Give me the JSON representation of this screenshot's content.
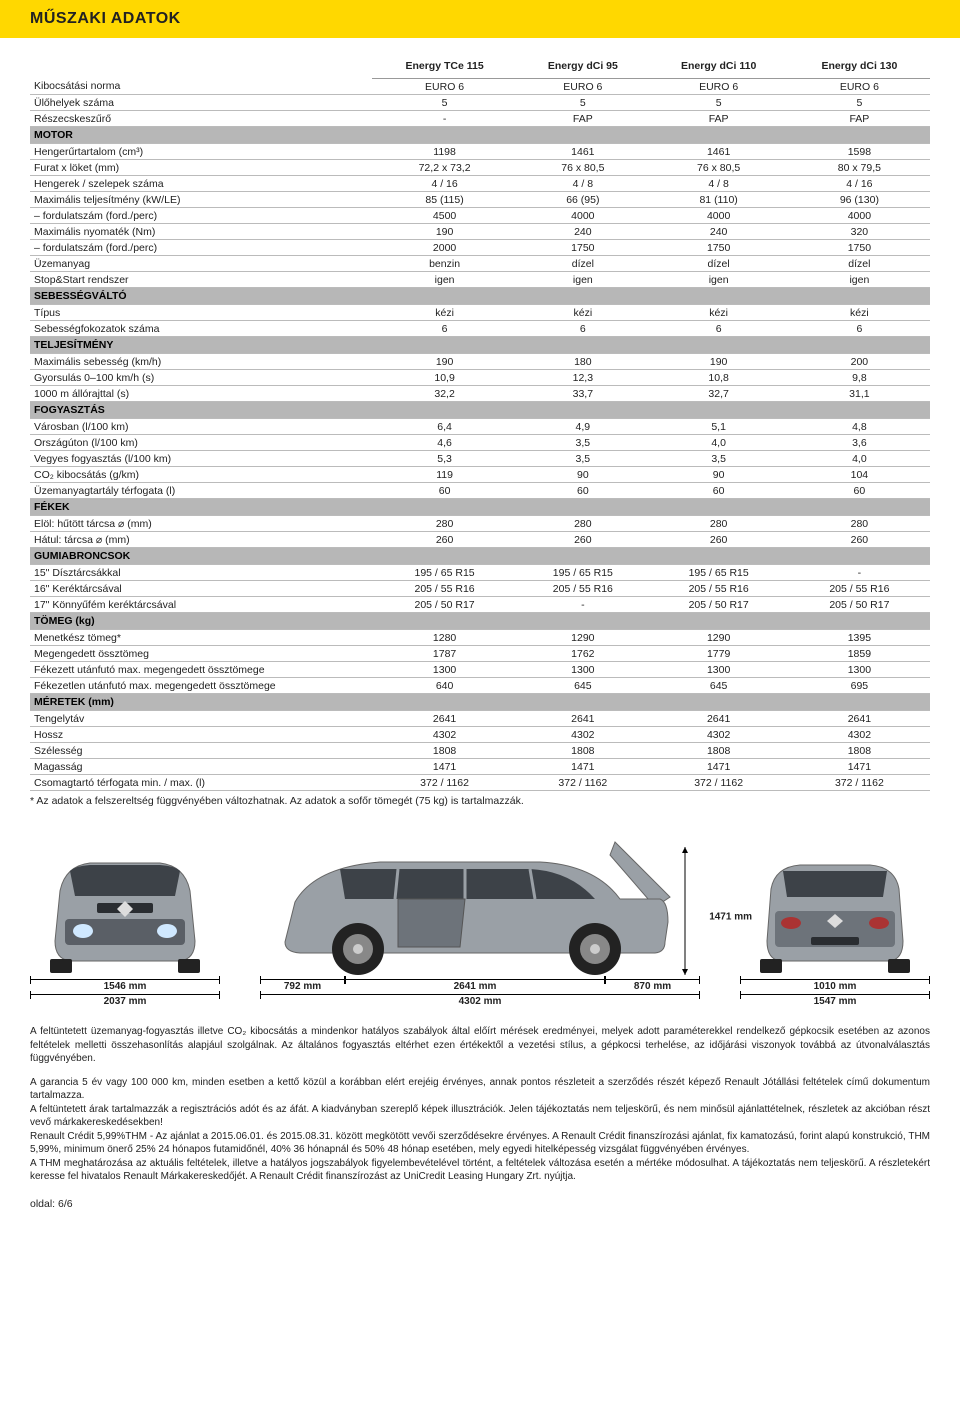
{
  "title": "MŰSZAKI ADATOK",
  "columns": [
    "Energy TCe 115",
    "Energy dCi 95",
    "Energy dCi 110",
    "Energy dCi 130"
  ],
  "sections": [
    {
      "type": "row",
      "label": "Kibocsátási norma",
      "v": [
        "EURO 6",
        "EURO 6",
        "EURO 6",
        "EURO 6"
      ]
    },
    {
      "type": "row",
      "label": "Ülőhelyek száma",
      "v": [
        "5",
        "5",
        "5",
        "5"
      ]
    },
    {
      "type": "row",
      "label": "Részecskeszűrő",
      "v": [
        "-",
        "FAP",
        "FAP",
        "FAP"
      ]
    },
    {
      "type": "section",
      "label": "MOTOR"
    },
    {
      "type": "row",
      "label": "Hengerűrtartalom (cm³)",
      "v": [
        "1198",
        "1461",
        "1461",
        "1598"
      ]
    },
    {
      "type": "row",
      "label": "Furat x löket (mm)",
      "v": [
        "72,2 x 73,2",
        "76 x 80,5",
        "76 x 80,5",
        "80 x 79,5"
      ]
    },
    {
      "type": "row",
      "label": "Hengerek / szelepek száma",
      "v": [
        "4 / 16",
        "4 / 8",
        "4 / 8",
        "4 / 16"
      ]
    },
    {
      "type": "row",
      "label": "Maximális teljesítmény (kW/LE)",
      "v": [
        "85 (115)",
        "66 (95)",
        "81 (110)",
        "96 (130)"
      ]
    },
    {
      "type": "row",
      "label": "– fordulatszám (ford./perc)",
      "v": [
        "4500",
        "4000",
        "4000",
        "4000"
      ]
    },
    {
      "type": "row",
      "label": "Maximális nyomaték (Nm)",
      "v": [
        "190",
        "240",
        "240",
        "320"
      ]
    },
    {
      "type": "row",
      "label": "– fordulatszám (ford./perc)",
      "v": [
        "2000",
        "1750",
        "1750",
        "1750"
      ]
    },
    {
      "type": "row",
      "label": "Üzemanyag",
      "v": [
        "benzin",
        "dízel",
        "dízel",
        "dízel"
      ]
    },
    {
      "type": "row",
      "label": "Stop&Start rendszer",
      "v": [
        "igen",
        "igen",
        "igen",
        "igen"
      ]
    },
    {
      "type": "section",
      "label": "SEBESSÉGVÁLTÓ"
    },
    {
      "type": "row",
      "label": "Típus",
      "v": [
        "kézi",
        "kézi",
        "kézi",
        "kézi"
      ]
    },
    {
      "type": "row",
      "label": "Sebességfokozatok száma",
      "v": [
        "6",
        "6",
        "6",
        "6"
      ]
    },
    {
      "type": "section",
      "label": "TELJESÍTMÉNY"
    },
    {
      "type": "row",
      "label": "Maximális sebesség (km/h)",
      "v": [
        "190",
        "180",
        "190",
        "200"
      ]
    },
    {
      "type": "row",
      "label": "Gyorsulás 0–100 km/h (s)",
      "v": [
        "10,9",
        "12,3",
        "10,8",
        "9,8"
      ]
    },
    {
      "type": "row",
      "label": "1000 m állórajttal (s)",
      "v": [
        "32,2",
        "33,7",
        "32,7",
        "31,1"
      ]
    },
    {
      "type": "section",
      "label": "FOGYASZTÁS"
    },
    {
      "type": "row",
      "label": "Városban (l/100 km)",
      "v": [
        "6,4",
        "4,9",
        "5,1",
        "4,8"
      ]
    },
    {
      "type": "row",
      "label": "Országúton (l/100 km)",
      "v": [
        "4,6",
        "3,5",
        "4,0",
        "3,6"
      ]
    },
    {
      "type": "row",
      "label": "Vegyes fogyasztás (l/100 km)",
      "v": [
        "5,3",
        "3,5",
        "3,5",
        "4,0"
      ]
    },
    {
      "type": "row",
      "label": "CO₂ kibocsátás (g/km)",
      "v": [
        "119",
        "90",
        "90",
        "104"
      ]
    },
    {
      "type": "row",
      "label": "Üzemanyagtartály térfogata (l)",
      "v": [
        "60",
        "60",
        "60",
        "60"
      ]
    },
    {
      "type": "section",
      "label": "FÉKEK"
    },
    {
      "type": "row",
      "label": "Elöl: hűtött tárcsa ⌀ (mm)",
      "v": [
        "280",
        "280",
        "280",
        "280"
      ]
    },
    {
      "type": "row",
      "label": "Hátul: tárcsa ⌀ (mm)",
      "v": [
        "260",
        "260",
        "260",
        "260"
      ]
    },
    {
      "type": "section",
      "label": "GUMIABRONCSOK"
    },
    {
      "type": "row",
      "label": "15\" Dísztárcsákkal",
      "v": [
        "195 / 65 R15",
        "195 / 65 R15",
        "195 / 65 R15",
        "-"
      ]
    },
    {
      "type": "row",
      "label": "16\" Keréktárcsával",
      "v": [
        "205 / 55 R16",
        "205 / 55 R16",
        "205 / 55 R16",
        "205 / 55 R16"
      ]
    },
    {
      "type": "row",
      "label": "17\" Könnyűfém keréktárcsával",
      "v": [
        "205 / 50 R17",
        "-",
        "205 / 50 R17",
        "205 / 50 R17"
      ]
    },
    {
      "type": "section",
      "label": "TÖMEG (kg)"
    },
    {
      "type": "row",
      "label": "Menetkész tömeg*",
      "v": [
        "1280",
        "1290",
        "1290",
        "1395"
      ]
    },
    {
      "type": "row",
      "label": "Megengedett össztömeg",
      "v": [
        "1787",
        "1762",
        "1779",
        "1859"
      ]
    },
    {
      "type": "row",
      "label": "Fékezett utánfutó max. megengedett össztömege",
      "v": [
        "1300",
        "1300",
        "1300",
        "1300"
      ]
    },
    {
      "type": "row",
      "label": "Fékezetlen utánfutó max. megengedett össztömege",
      "v": [
        "640",
        "645",
        "645",
        "695"
      ]
    },
    {
      "type": "section",
      "label": "MÉRETEK (mm)"
    },
    {
      "type": "row",
      "label": "Tengelytáv",
      "v": [
        "2641",
        "2641",
        "2641",
        "2641"
      ]
    },
    {
      "type": "row",
      "label": "Hossz",
      "v": [
        "4302",
        "4302",
        "4302",
        "4302"
      ]
    },
    {
      "type": "row",
      "label": "Szélesség",
      "v": [
        "1808",
        "1808",
        "1808",
        "1808"
      ]
    },
    {
      "type": "row",
      "label": "Magasság",
      "v": [
        "1471",
        "1471",
        "1471",
        "1471"
      ]
    },
    {
      "type": "row",
      "label": "Csomagtartó térfogata min. / max. (l)",
      "v": [
        "372 / 1162",
        "372 / 1162",
        "372 / 1162",
        "372 / 1162"
      ]
    }
  ],
  "footnote": "* Az adatok a felszereltség függvényében változhatnak. Az adatok a sofőr tömegét (75 kg) is tartalmazzák.",
  "dimensions": {
    "front_track": "1546 mm",
    "front_width": "2037 mm",
    "side_front_overhang": "792 mm",
    "side_wheelbase": "2641 mm",
    "side_rear_overhang": "870 mm",
    "side_length": "4302 mm",
    "height": "1471 mm",
    "rear_track": "1010 mm",
    "rear_width": "1547 mm"
  },
  "disclaimer": [
    "A feltüntetett üzemanyag-fogyasztás illetve CO₂ kibocsátás a mindenkor hatályos szabályok által előírt mérések eredményei, melyek adott paraméterekkel rendelkező gépkocsik esetében az azonos feltételek melletti összehasonlítás alapjául szolgálnak. Az általános fogyasztás eltérhet ezen értékektől a vezetési stílus, a gépkocsi terhelése, az időjárási viszonyok továbbá az útvonalválasztás függvényében.",
    "A garancia 5 év vagy 100 000 km, minden esetben a kettő közül a korábban elért erejéig érvényes, annak pontos részleteit a szerződés részét képező Renault Jótállási feltételek című dokumentum tartalmazza.\nA feltüntetett árak tartalmazzák a regisztrációs adót és az áfát. A kiadványban szereplő képek illusztrációk. Jelen tájékoztatás nem teljeskörű, és nem minősül ajánlattételnek, részletek az akcióban részt vevő márkakereskedésekben!\nRenault Crédit 5,99%THM - Az ajánlat a 2015.06.01. és 2015.08.31. között megkötött vevői szerződésekre érvényes. A Renault Crédit finanszírozási ajánlat, fix kamatozású, forint alapú konstrukció, THM 5,99%, minimum önerő 25% 24 hónapos futamidőnél, 40% 36 hónapnál és 50% 48 hónap esetében, mely egyedi hitelképesség vizsgálat függvényében érvényes.\nA THM meghatározása az aktuális feltételek, illetve a hatályos jogszabályok figyelembevételével történt, a feltételek változása esetén a mértéke módosulhat. A tájékoztatás nem teljeskörű. A részletekért keresse fel hivatalos Renault Márkakereskedőjét.  A Renault Crédit finanszírozást az UniCredit Leasing Hungary Zrt. nyújtja."
  ],
  "page_num": "oldal: 6/6",
  "colors": {
    "yellow": "#ffd800",
    "section_bg": "#b7b7b7",
    "border": "#bbb",
    "car_body": "#9aa0a6",
    "car_dark": "#5a5f66"
  }
}
